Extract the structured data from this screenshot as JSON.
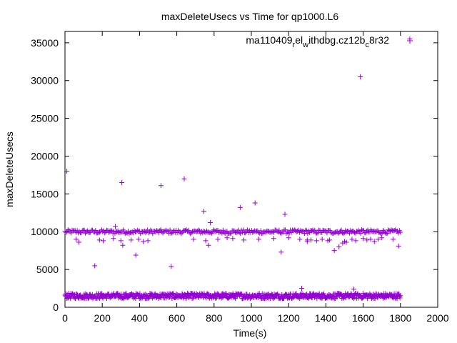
{
  "chart_data": {
    "type": "scatter",
    "title": "maxDeleteUsecs vs Time for qp1000.L6",
    "xlabel": "Time(s)",
    "ylabel": "maxDeleteUsecs",
    "xlim": [
      0,
      2000
    ],
    "ylim": [
      0,
      36500
    ],
    "x_ticks": [
      0,
      200,
      400,
      600,
      800,
      1000,
      1200,
      1400,
      1600,
      1800,
      2000
    ],
    "y_ticks": [
      0,
      5000,
      10000,
      15000,
      20000,
      25000,
      30000,
      35000
    ],
    "x_tick_labels": [
      "0",
      "200",
      "400",
      "600",
      "800",
      "1000",
      "1200",
      "1400",
      "1600",
      "1800",
      "2000"
    ],
    "y_tick_labels": [
      "0",
      "5000",
      "10000",
      "15000",
      "20000",
      "25000",
      "30000",
      "35000"
    ],
    "grid": false,
    "legend": {
      "position": "top-right",
      "marker": "+"
    },
    "series": [
      {
        "name_parts": [
          "ma110409",
          "r",
          "el",
          "w",
          "ithdbg.cz12b",
          "c",
          "8r32"
        ],
        "name_subscripts": [
          1,
          3,
          5
        ],
        "color": "#9400d3",
        "marker": "+",
        "points": [
          [
            10,
            18000
          ],
          [
            160,
            5500
          ],
          [
            270,
            10700
          ],
          [
            305,
            16500
          ],
          [
            380,
            6900
          ],
          [
            515,
            16100
          ],
          [
            570,
            5400
          ],
          [
            640,
            17000
          ],
          [
            745,
            12700
          ],
          [
            770,
            8200
          ],
          [
            780,
            11200
          ],
          [
            940,
            13200
          ],
          [
            1020,
            13800
          ],
          [
            1160,
            7300
          ],
          [
            1180,
            12300
          ],
          [
            1270,
            2500
          ],
          [
            1550,
            2400
          ],
          [
            1585,
            30500
          ],
          [
            1850,
            35500
          ],
          [
            60,
            9000
          ],
          [
            75,
            8600
          ],
          [
            185,
            8900
          ],
          [
            205,
            8800
          ],
          [
            260,
            9100
          ],
          [
            300,
            8800
          ],
          [
            310,
            8200
          ],
          [
            355,
            8900
          ],
          [
            395,
            9000
          ],
          [
            420,
            8700
          ],
          [
            445,
            8800
          ],
          [
            690,
            9000
          ],
          [
            755,
            8800
          ],
          [
            820,
            9000
          ],
          [
            870,
            9200
          ],
          [
            900,
            9100
          ],
          [
            960,
            8900
          ],
          [
            1040,
            9000
          ],
          [
            1120,
            9100
          ],
          [
            1200,
            9200
          ],
          [
            1260,
            9000
          ],
          [
            1300,
            8900
          ],
          [
            1350,
            8800
          ],
          [
            1420,
            8900
          ],
          [
            1445,
            7500
          ],
          [
            1470,
            8000
          ],
          [
            1500,
            8700
          ],
          [
            1540,
            9000
          ],
          [
            1600,
            9100
          ],
          [
            1640,
            9000
          ],
          [
            1700,
            9200
          ],
          [
            1760,
            9000
          ],
          [
            1790,
            8100
          ],
          [
            1300,
            8700
          ],
          [
            1320,
            8900
          ],
          [
            1380,
            9000
          ],
          [
            1410,
            8800
          ],
          [
            1490,
            8500
          ],
          [
            1510,
            8600
          ],
          [
            1560,
            8800
          ],
          [
            1620,
            8900
          ],
          [
            1660,
            8700
          ],
          [
            1680,
            9000
          ]
        ],
        "bands": [
          {
            "x_start": 0,
            "x_end": 1800,
            "y_center": 10000,
            "y_spread": 250,
            "count": 330
          },
          {
            "x_start": 0,
            "x_end": 1800,
            "y_center": 1500,
            "y_spread": 350,
            "count": 700
          }
        ]
      }
    ]
  }
}
